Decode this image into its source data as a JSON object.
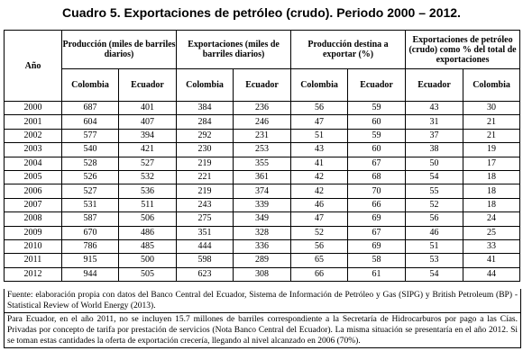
{
  "title": "Cuadro 5. Exportaciones de petróleo (crudo). Periodo 2000 – 2012.",
  "table": {
    "year_header": "Año",
    "groups": [
      "Producción (miles de barriles diarios)",
      "Exportaciones (miles de barriles diarios)",
      "Producción destina a exportar (%)",
      "Exportaciones de petróleo (crudo) como % del total de exportaciones"
    ],
    "subheaders": [
      "Colombia",
      "Ecuador",
      "Colombia",
      "Ecuador",
      "Colombia",
      "Ecuador",
      "Ecuador",
      "Colombia"
    ],
    "rows": [
      [
        "2000",
        "687",
        "401",
        "384",
        "236",
        "56",
        "59",
        "43",
        "30"
      ],
      [
        "2001",
        "604",
        "407",
        "284",
        "246",
        "47",
        "60",
        "31",
        "21"
      ],
      [
        "2002",
        "577",
        "394",
        "292",
        "231",
        "51",
        "59",
        "37",
        "21"
      ],
      [
        "2003",
        "540",
        "421",
        "230",
        "253",
        "43",
        "60",
        "38",
        "19"
      ],
      [
        "2004",
        "528",
        "527",
        "219",
        "355",
        "41",
        "67",
        "50",
        "17"
      ],
      [
        "2005",
        "526",
        "532",
        "221",
        "361",
        "42",
        "68",
        "54",
        "18"
      ],
      [
        "2006",
        "527",
        "536",
        "219",
        "374",
        "42",
        "70",
        "55",
        "18"
      ],
      [
        "2007",
        "531",
        "511",
        "243",
        "339",
        "46",
        "66",
        "52",
        "18"
      ],
      [
        "2008",
        "587",
        "506",
        "275",
        "349",
        "47",
        "69",
        "56",
        "24"
      ],
      [
        "2009",
        "670",
        "486",
        "351",
        "328",
        "52",
        "67",
        "46",
        "25"
      ],
      [
        "2010",
        "786",
        "485",
        "444",
        "336",
        "56",
        "69",
        "51",
        "33"
      ],
      [
        "2011",
        "915",
        "500",
        "598",
        "289",
        "65",
        "58",
        "53",
        "41"
      ],
      [
        "2012",
        "944",
        "505",
        "623",
        "308",
        "66",
        "61",
        "54",
        "44"
      ]
    ]
  },
  "notes": {
    "source": "Fuente: elaboración propia con datos del Banco Central del Ecuador, Sistema de Información de Petróleo y Gas (SIPG) y British Petroleum (BP) - Statistical Review of World Energy (2013).",
    "note": "Para Ecuador, en el año 2011, no se incluyen 15.7 millones de barriles correspondiente a la Secretaría de Hidrocarburos por pago a las Cías. Privadas por concepto de tarifa por prestación de servicios (Nota Banco Central del Ecuador). La misma situación se presentaría en el año 2012. Si se toman estas cantidades la oferta de exportación crecería, llegando al nivel alcanzado en 2006 (70%)."
  }
}
